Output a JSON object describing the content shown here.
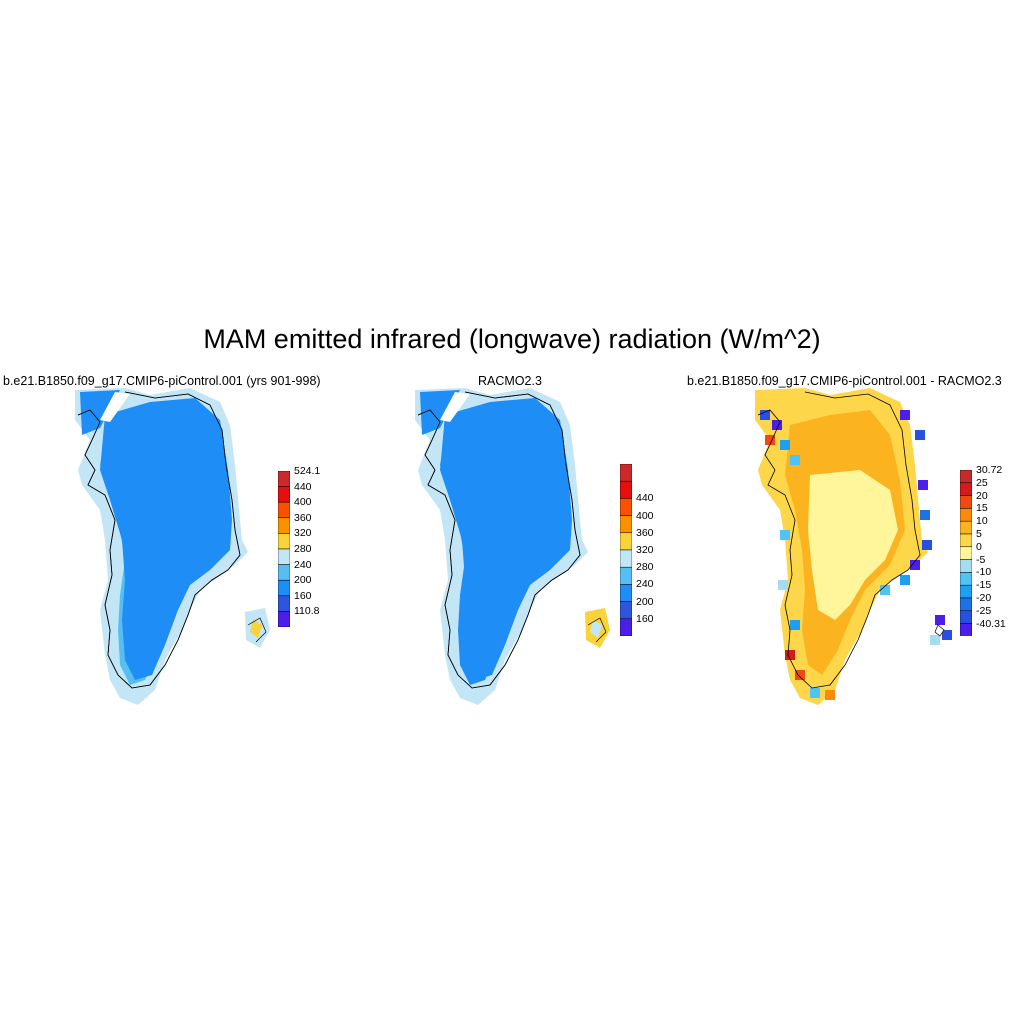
{
  "figure": {
    "title": "MAM emitted infrared (longwave) radiation (W/m^2)"
  },
  "colors": {
    "c110": "#4b1fe9",
    "c160": "#2f55e0",
    "c200": "#1e8df5",
    "c240": "#55bff2",
    "c280": "#c3e6f7",
    "c320": "#fad23a",
    "c360": "#fa9200",
    "c400": "#fa5000",
    "c440": "#e60e0e",
    "c524": "#cc2a2a",
    "d_m40": "#4b1fe9",
    "d_m25": "#2750e0",
    "d_m20": "#1e72e8",
    "d_m15": "#1da0f2",
    "d_m10": "#4ec3f5",
    "d_m5": "#a5dcf3",
    "d_0": "#fff59a",
    "d_5": "#fdd64a",
    "d_10": "#fcb320",
    "d_15": "#f98a0c",
    "d_20": "#ef4a14",
    "d_25": "#d41a1a",
    "d_30": "#c42c2c"
  },
  "panels": [
    {
      "title": "b.e21.B1850.f09_g17.CMIP6-piControl.001 (yrs 901-998)",
      "colorbar": {
        "labels": [
          "524.1",
          "440",
          "400",
          "360",
          "320",
          "280",
          "240",
          "200",
          "160",
          "110.8"
        ],
        "colors": [
          "#cc2a2a",
          "#e60e0e",
          "#fa5000",
          "#fa9200",
          "#fad23a",
          "#c3e6f7",
          "#55bff2",
          "#1e8df5",
          "#2f55e0",
          "#4b1fe9"
        ]
      }
    },
    {
      "title": "RACMO2.3",
      "colorbar": {
        "labels": [
          "440",
          "400",
          "360",
          "320",
          "280",
          "240",
          "200",
          "160"
        ],
        "colors": [
          "#cc2a2a",
          "#e60e0e",
          "#fa5000",
          "#fa9200",
          "#fad23a",
          "#c3e6f7",
          "#55bff2",
          "#1e8df5",
          "#2f55e0",
          "#4b1fe9"
        ]
      }
    },
    {
      "title": "b.e21.B1850.f09_g17.CMIP6-piControl.001 - RACMO2.3",
      "colorbar": {
        "labels": [
          "30.72",
          "25",
          "20",
          "15",
          "10",
          "5",
          "0",
          "-5",
          "-10",
          "-15",
          "-20",
          "-25",
          "-40.31"
        ],
        "colors": [
          "#c42c2c",
          "#d41a1a",
          "#ef4a14",
          "#f98a0c",
          "#fcb320",
          "#fdd64a",
          "#fff59a",
          "#a5dcf3",
          "#4ec3f5",
          "#1da0f2",
          "#1e72e8",
          "#2750e0",
          "#4b1fe9"
        ]
      }
    }
  ]
}
